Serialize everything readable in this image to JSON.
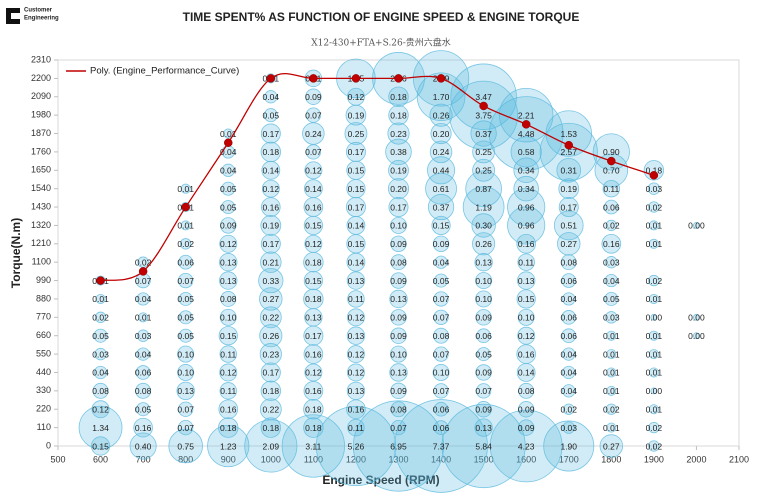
{
  "logo": {
    "line1": "Customer",
    "line2": "Engineering"
  },
  "chart_data": {
    "type": "bubble",
    "title": "TIME SPENT% AS FUNCTION OF ENGINE SPEED & ENGINE TORQUE",
    "subtitle": "X12-430+FTA+S.26-贵州六盘水",
    "x_label": "Engine Speed (RPM)",
    "y_label": "Torque(N.m)",
    "xlim": [
      500,
      2100
    ],
    "xticks": [
      500,
      600,
      700,
      800,
      900,
      1000,
      1100,
      1200,
      1300,
      1400,
      1500,
      1600,
      1700,
      1800,
      1900,
      2000,
      2100
    ],
    "ylim": [
      0,
      2310
    ],
    "yticks": [
      0,
      110,
      220,
      330,
      440,
      550,
      660,
      770,
      880,
      990,
      1100,
      1210,
      1320,
      1430,
      1540,
      1650,
      1760,
      1870,
      1980,
      2090,
      2200,
      2310
    ],
    "bubble_color": "#5bb9de",
    "columns": [
      {
        "x": 600,
        "y": [
          0,
          110,
          220,
          330,
          440,
          550,
          660,
          770,
          880,
          990
        ],
        "values": [
          0.15,
          1.34,
          0.12,
          0.08,
          0.04,
          0.03,
          0.05,
          0.02,
          0.01,
          0.01
        ],
        "value_labels": [
          "0.15",
          "1.34",
          "0.12",
          "0.08",
          "0.04",
          "0.03",
          "0.05",
          "0.02",
          "0.01",
          "0.01"
        ]
      },
      {
        "x": 700,
        "y": [
          0,
          110,
          220,
          330,
          440,
          550,
          660,
          770,
          880,
          990,
          1100
        ],
        "values": [
          0.4,
          0.16,
          0.05,
          0.08,
          0.06,
          0.04,
          0.03,
          0.01,
          0.04,
          0.07,
          0.02
        ],
        "value_labels": [
          "0.40",
          "0.16",
          "0.05",
          "0.08",
          "0.06",
          "0.04",
          "0.03",
          "0.01",
          "0.04",
          "0.07",
          "0.02"
        ]
      },
      {
        "x": 800,
        "y": [
          0,
          110,
          220,
          330,
          440,
          550,
          660,
          770,
          880,
          990,
          1100,
          1210,
          1320,
          1430,
          1540
        ],
        "values": [
          0.75,
          0.07,
          0.07,
          0.13,
          0.1,
          0.1,
          0.05,
          0.05,
          0.05,
          0.07,
          0.06,
          0.02,
          0.01,
          0.01,
          0.01
        ],
        "value_labels": [
          "0.75",
          "0.07",
          "0.07",
          "0.13",
          "0.10",
          "0.10",
          "0.05",
          "0.05",
          "0.05",
          "0.07",
          "0.06",
          "0.02",
          "0.01",
          "0.01",
          "0.01"
        ]
      },
      {
        "x": 900,
        "y": [
          0,
          110,
          220,
          330,
          440,
          550,
          660,
          770,
          880,
          990,
          1100,
          1210,
          1320,
          1430,
          1540,
          1650,
          1760,
          1870
        ],
        "values": [
          1.23,
          0.18,
          0.16,
          0.11,
          0.12,
          0.11,
          0.15,
          0.1,
          0.08,
          0.13,
          0.13,
          0.12,
          0.09,
          0.05,
          0.05,
          0.04,
          0.04,
          0.01
        ],
        "value_labels": [
          "1.23",
          "0.18",
          "0.16",
          "0.11",
          "0.12",
          "0.11",
          "0.15",
          "0.10",
          "0.08",
          "0.13",
          "0.13",
          "0.12",
          "0.09",
          "0.05",
          "0.05",
          "0.04",
          "0.04",
          "0.01"
        ]
      },
      {
        "x": 1000,
        "y": [
          0,
          110,
          220,
          330,
          440,
          550,
          660,
          770,
          880,
          990,
          1100,
          1210,
          1320,
          1430,
          1540,
          1650,
          1760,
          1870,
          1980,
          2090,
          2200
        ],
        "values": [
          2.09,
          0.18,
          0.22,
          0.18,
          0.17,
          0.23,
          0.26,
          0.22,
          0.27,
          0.33,
          0.21,
          0.17,
          0.19,
          0.16,
          0.12,
          0.14,
          0.18,
          0.17,
          0.05,
          0.04,
          0.01
        ],
        "value_labels": [
          "2.09",
          "0.18",
          "0.22",
          "0.18",
          "0.17",
          "0.23",
          "0.26",
          "0.22",
          "0.27",
          "0.33",
          "0.21",
          "0.17",
          "0.19",
          "0.16",
          "0.12",
          "0.14",
          "0.18",
          "0.17",
          "0.05",
          "0.04",
          "0.01"
        ]
      },
      {
        "x": 1100,
        "y": [
          0,
          110,
          220,
          330,
          440,
          550,
          660,
          770,
          880,
          990,
          1100,
          1210,
          1320,
          1430,
          1540,
          1650,
          1760,
          1870,
          1980,
          2090,
          2200
        ],
        "values": [
          3.11,
          0.18,
          0.18,
          0.16,
          0.12,
          0.16,
          0.17,
          0.13,
          0.18,
          0.15,
          0.18,
          0.12,
          0.15,
          0.16,
          0.14,
          0.12,
          0.07,
          0.24,
          0.07,
          0.09,
          0.11
        ],
        "value_labels": [
          "3.11",
          "0.18",
          "0.18",
          "0.16",
          "0.12",
          "0.16",
          "0.17",
          "0.13",
          "0.18",
          "0.15",
          "0.18",
          "0.12",
          "0.15",
          "0.16",
          "0.14",
          "0.12",
          "0.07",
          "0.24",
          "0.07",
          "0.09",
          "0.11"
        ]
      },
      {
        "x": 1200,
        "y": [
          0,
          110,
          220,
          330,
          440,
          550,
          660,
          770,
          880,
          990,
          1100,
          1210,
          1320,
          1430,
          1540,
          1650,
          1760,
          1870,
          1980,
          2090,
          2200
        ],
        "values": [
          5.26,
          0.11,
          0.16,
          0.13,
          0.12,
          0.12,
          0.13,
          0.12,
          0.11,
          0.13,
          0.14,
          0.15,
          0.14,
          0.17,
          0.15,
          0.15,
          0.17,
          0.25,
          0.19,
          0.12,
          1.05
        ],
        "value_labels": [
          "5.26",
          "0.11",
          "0.16",
          "0.13",
          "0.12",
          "0.12",
          "0.13",
          "0.12",
          "0.11",
          "0.13",
          "0.14",
          "0.15",
          "0.14",
          "0.17",
          "0.15",
          "0.15",
          "0.17",
          "0.25",
          "0.19",
          "0.12",
          "1.05"
        ]
      },
      {
        "x": 1300,
        "y": [
          0,
          110,
          220,
          330,
          440,
          550,
          660,
          770,
          880,
          990,
          1100,
          1210,
          1320,
          1430,
          1540,
          1650,
          1760,
          1870,
          1980,
          2090,
          2200
        ],
        "values": [
          6.95,
          0.07,
          0.08,
          0.09,
          0.13,
          0.1,
          0.09,
          0.09,
          0.13,
          0.09,
          0.08,
          0.09,
          0.1,
          0.17,
          0.2,
          0.19,
          0.38,
          0.23,
          0.18,
          0.18,
          2.06
        ],
        "value_labels": [
          "6.95",
          "0.07",
          "0.08",
          "0.09",
          "0.13",
          "0.10",
          "0.09",
          "0.09",
          "0.13",
          "0.09",
          "0.08",
          "0.09",
          "0.10",
          "0.17",
          "0.20",
          "0.19",
          "0.38",
          "0.23",
          "0.18",
          "0.18",
          "2.06"
        ]
      },
      {
        "x": 1400,
        "y": [
          0,
          110,
          220,
          330,
          440,
          550,
          660,
          770,
          880,
          990,
          1100,
          1210,
          1320,
          1430,
          1540,
          1650,
          1760,
          1870,
          1980,
          2090,
          2200
        ],
        "values": [
          7.37,
          0.06,
          0.06,
          0.07,
          0.1,
          0.07,
          0.08,
          0.07,
          0.07,
          0.05,
          0.04,
          0.09,
          0.15,
          0.37,
          0.61,
          0.44,
          0.24,
          0.2,
          0.26,
          1.7,
          2.39
        ],
        "value_labels": [
          "7.37",
          "0.06",
          "0.06",
          "0.07",
          "0.10",
          "0.07",
          "0.08",
          "0.07",
          "0.07",
          "0.05",
          "0.04",
          "0.09",
          "0.15",
          "0.37",
          "0.61",
          "0.44",
          "0.24",
          "0.20",
          "0.26",
          "1.70",
          "2.39"
        ]
      },
      {
        "x": 1500,
        "y": [
          0,
          110,
          220,
          330,
          440,
          550,
          660,
          770,
          880,
          990,
          1100,
          1210,
          1320,
          1430,
          1540,
          1650,
          1760,
          1870,
          1980,
          2090
        ],
        "values": [
          5.84,
          0.13,
          0.09,
          0.07,
          0.09,
          0.05,
          0.06,
          0.09,
          0.1,
          0.1,
          0.13,
          0.26,
          0.3,
          1.19,
          0.87,
          0.25,
          0.25,
          0.37,
          3.75,
          3.47
        ],
        "value_labels": [
          "5.84",
          "0.13",
          "0.09",
          "0.07",
          "0.09",
          "0.05",
          "0.06",
          "0.09",
          "0.10",
          "0.10",
          "0.13",
          "0.26",
          "0.30",
          "1.19",
          "0.87",
          "0.25",
          "0.25",
          "0.37",
          "3.75",
          "3.47"
        ]
      },
      {
        "x": 1600,
        "y": [
          0,
          110,
          220,
          330,
          440,
          550,
          660,
          770,
          880,
          990,
          1100,
          1210,
          1320,
          1430,
          1540,
          1650,
          1760,
          1870,
          1980
        ],
        "values": [
          4.23,
          0.09,
          0.09,
          0.08,
          0.14,
          0.16,
          0.12,
          0.1,
          0.15,
          0.13,
          0.11,
          0.16,
          0.96,
          0.96,
          0.34,
          0.34,
          0.58,
          4.48,
          2.21
        ],
        "value_labels": [
          "4.23",
          "0.09",
          "0.09",
          "0.08",
          "0.14",
          "0.16",
          "0.12",
          "0.10",
          "0.15",
          "0.13",
          "0.11",
          "0.16",
          "0.96",
          "0.96",
          "0.34",
          "0.34",
          "0.58",
          "4.48",
          "2.21"
        ]
      },
      {
        "x": 1700,
        "y": [
          0,
          110,
          220,
          330,
          440,
          550,
          660,
          770,
          880,
          990,
          1100,
          1210,
          1320,
          1430,
          1540,
          1650,
          1760,
          1870
        ],
        "values": [
          1.9,
          0.03,
          0.02,
          0.04,
          0.04,
          0.04,
          0.06,
          0.06,
          0.04,
          0.06,
          0.08,
          0.27,
          0.51,
          0.17,
          0.19,
          0.31,
          2.57,
          1.53
        ],
        "value_labels": [
          "1.90",
          "0.03",
          "0.02",
          "0.04",
          "0.04",
          "0.04",
          "0.06",
          "0.06",
          "0.04",
          "0.06",
          "0.08",
          "0.27",
          "0.51",
          "0.17",
          "0.19",
          "0.31",
          "2.57",
          "1.53"
        ]
      },
      {
        "x": 1800,
        "y": [
          0,
          110,
          220,
          330,
          440,
          550,
          660,
          770,
          880,
          990,
          1100,
          1210,
          1320,
          1430,
          1540,
          1650,
          1760
        ],
        "values": [
          0.27,
          0.01,
          0.02,
          0.01,
          0.01,
          0.01,
          0.01,
          0.03,
          0.05,
          0.04,
          0.03,
          0.16,
          0.02,
          0.06,
          0.11,
          0.7,
          0.9
        ],
        "value_labels": [
          "0.27",
          "0.01",
          "0.02",
          "0.01",
          "0.01",
          "0.01",
          "0.01",
          "0.03",
          "0.05",
          "0.04",
          "0.03",
          "0.16",
          "0.02",
          "0.06",
          "0.11",
          "0.70",
          "0.90"
        ]
      },
      {
        "x": 1900,
        "y": [
          0,
          110,
          220,
          330,
          440,
          550,
          660,
          770,
          880,
          990,
          1210,
          1320,
          1430,
          1540,
          1650
        ],
        "values": [
          0.02,
          0.02,
          0.01,
          0,
          0.01,
          0.01,
          0.01,
          0,
          0.01,
          0.02,
          0.01,
          0.01,
          0.02,
          0.03,
          0.18
        ],
        "value_labels": [
          "0.02",
          "0.02",
          "0.01",
          "0.00",
          "0.01",
          "0.01",
          "0.01",
          "0.00",
          "0.01",
          "0.02",
          "0.01",
          "0.01",
          "0.02",
          "0.03",
          "0.18"
        ]
      },
      {
        "x": 2000,
        "y": [
          660,
          770,
          1320
        ],
        "values": [
          0,
          0,
          0
        ],
        "value_labels": [
          "0.00",
          "0.00",
          "0.00"
        ]
      }
    ],
    "performance_points": {
      "color": "#c00000",
      "x": [
        600,
        700,
        800,
        900,
        1000,
        1100,
        1200,
        1300,
        1400,
        1500,
        1600,
        1700,
        1800,
        1900
      ],
      "y": [
        990,
        1045,
        1430,
        1815,
        2200,
        2200,
        2200,
        2200,
        2200,
        2035,
        1925,
        1800,
        1705,
        1620
      ]
    },
    "trendline": {
      "name": "Poly. (Engine_Performance_Curve)",
      "color": "#c00000"
    },
    "legend": "top-left"
  }
}
